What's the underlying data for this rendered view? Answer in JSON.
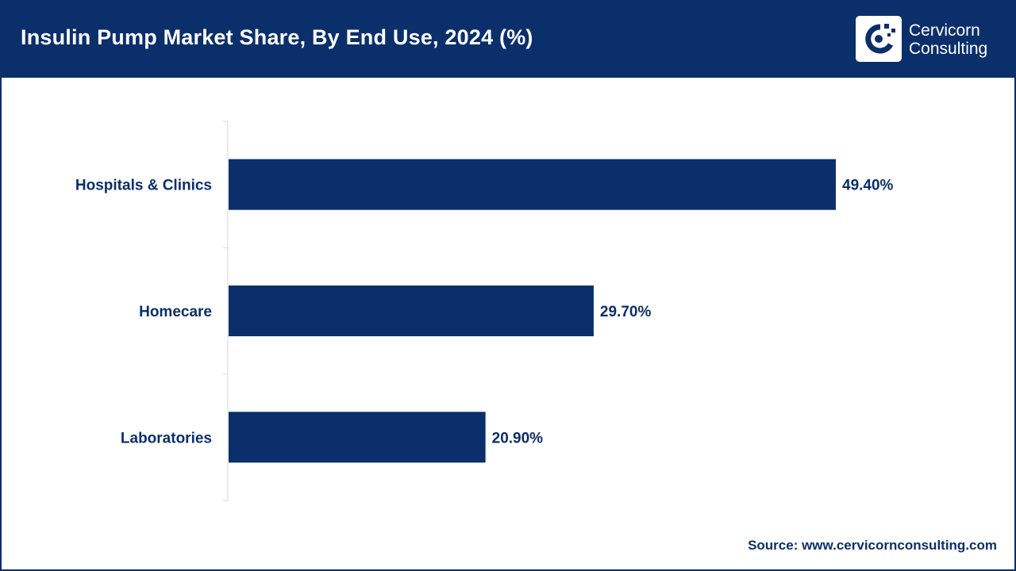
{
  "header": {
    "title": "Insulin Pump Market Share, By End Use, 2024 (%)",
    "logo_line1": "Cervicorn",
    "logo_line2": "Consulting",
    "background_color": "#0b2f6b"
  },
  "chart_data": {
    "type": "bar",
    "orientation": "horizontal",
    "title": "Insulin Pump Market Share, By End Use, 2024 (%)",
    "categories": [
      "Hospitals & Clinics",
      "Homecare",
      "Laboratories"
    ],
    "values": [
      49.4,
      29.7,
      20.9
    ],
    "value_labels": [
      "49.40%",
      "29.70%",
      "20.90%"
    ],
    "xlim": [
      0,
      60
    ],
    "grid": false,
    "legend": "none",
    "bar_color": "#0b2f6b"
  },
  "footer": {
    "source": "Source: www.cervicornconsulting.com"
  }
}
